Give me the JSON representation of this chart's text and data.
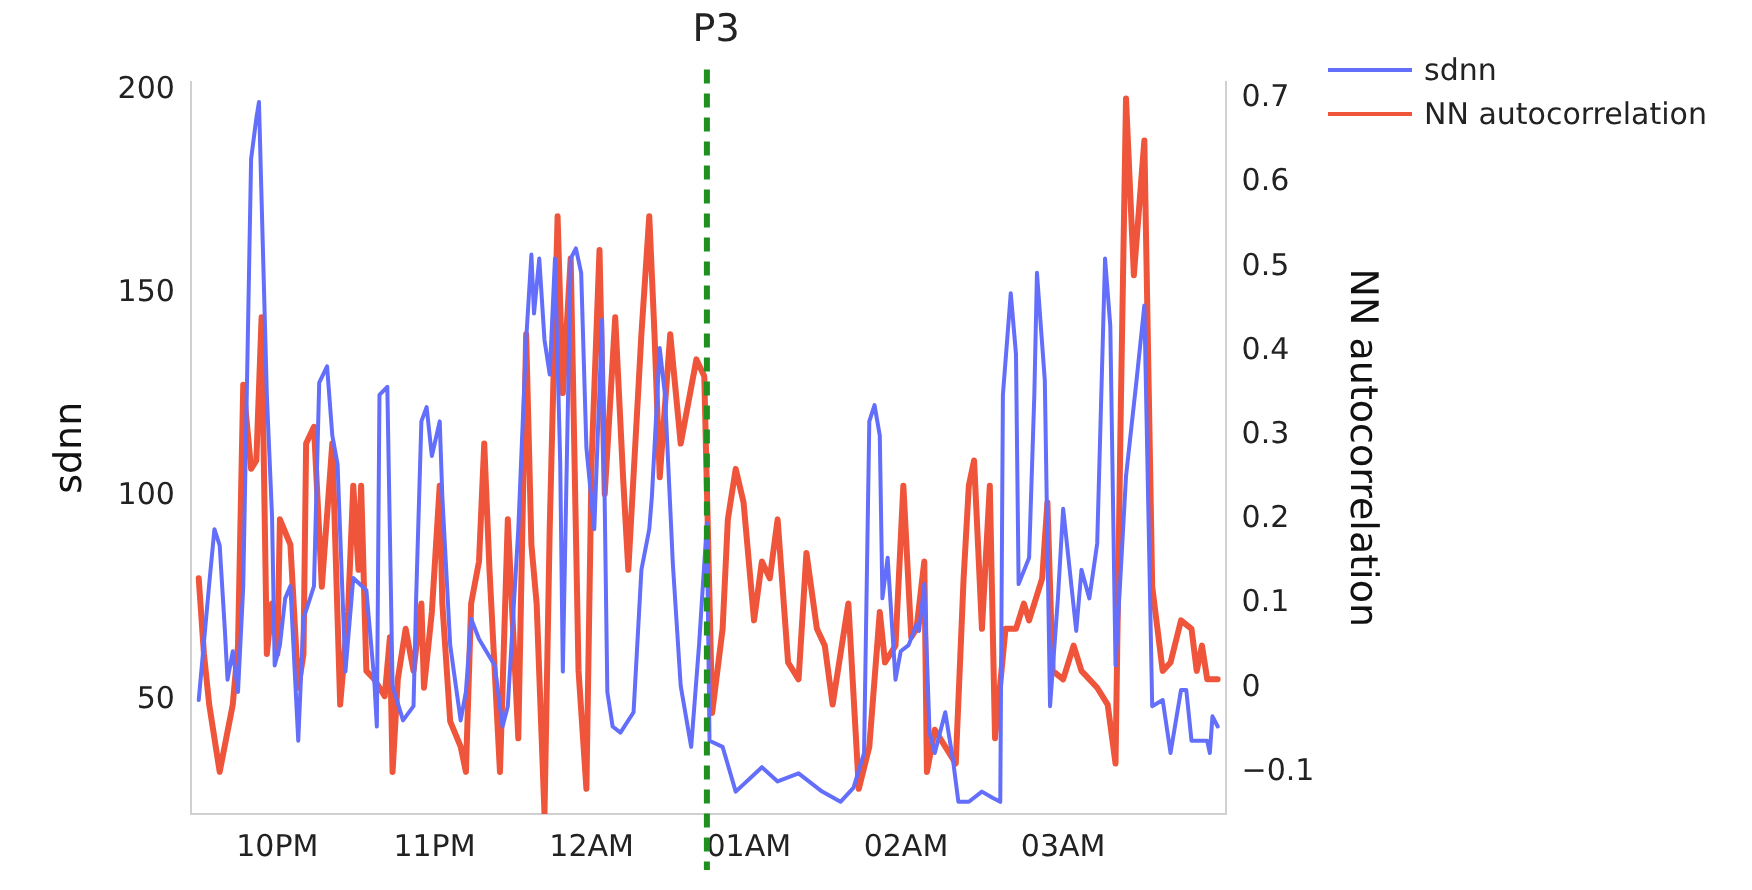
{
  "chart_data": {
    "type": "line",
    "title": "P3",
    "ylabel": "sdnn",
    "y2label": "NN autocorrelation",
    "xlim": [
      "--01-01T21:27",
      "--01-02T04:02"
    ],
    "xticks": [
      {
        "value": "--01-01T22:00",
        "label": "10PM"
      },
      {
        "value": "--01-01T23:00",
        "label": "11PM"
      },
      {
        "value": "--01-02T00:00",
        "label": "12AM"
      },
      {
        "value": "--01-02T01:00",
        "label": "01AM"
      },
      {
        "value": "--01-02T02:00",
        "label": "02AM"
      },
      {
        "value": "--01-02T03:00",
        "label": "03AM"
      }
    ],
    "ylim": [
      22,
      202
    ],
    "yticks": [
      50,
      100,
      150,
      200
    ],
    "y2lim": [
      -0.15,
      0.72
    ],
    "y2ticks": [
      {
        "value": -0.1,
        "label": "−0.1"
      },
      0,
      0.1,
      0.2,
      0.3,
      0.4,
      0.5,
      0.6,
      0.7
    ],
    "grid": false,
    "legend": "top right",
    "marker": "none",
    "line_style": "solid",
    "ref_lines": [
      {
        "axis": "x",
        "value": "--01-02T00:44",
        "color": "#1f8f1f",
        "line_style": "dashed"
      }
    ],
    "series": [
      {
        "name": "sdnn",
        "color": "#636efa",
        "x": [
          "--01-01T21:30",
          "--01-01T21:34",
          "--01-01T21:36",
          "--01-01T21:38",
          "--01-01T21:40",
          "--01-01T21:41",
          "--01-01T21:43",
          "--01-01T21:45",
          "--01-01T21:47",
          "--01-01T21:50",
          "--01-01T21:52",
          "--01-01T21:53",
          "--01-01T21:56",
          "--01-01T21:58",
          "--01-01T21:59",
          "--01-01T22:01",
          "--01-01T22:03",
          "--01-01T22:05",
          "--01-01T22:08",
          "--01-01T22:10",
          "--01-01T22:14",
          "--01-01T22:16",
          "--01-01T22:19",
          "--01-01T22:21",
          "--01-01T22:23",
          "--01-01T22:26",
          "--01-01T22:29",
          "--01-01T22:34",
          "--01-01T22:37",
          "--01-01T22:38",
          "--01-01T22:39",
          "--01-01T22:42",
          "--01-01T22:44",
          "--01-01T22:48",
          "--01-01T22:52",
          "--01-01T22:53",
          "--01-01T22:55",
          "--01-01T22:57",
          "--01-01T22:59",
          "--01-01T23:02",
          "--01-01T23:03",
          "--01-01T23:06",
          "--01-01T23:10",
          "--01-01T23:12",
          "--01-01T23:14",
          "--01-01T23:17",
          "--01-01T23:23",
          "--01-01T23:26",
          "--01-01T23:28",
          "--01-01T23:32",
          "--01-01T23:35",
          "--01-01T23:37",
          "--01-01T23:38",
          "--01-01T23:40",
          "--01-01T23:42",
          "--01-01T23:44",
          "--01-01T23:46",
          "--01-01T23:48",
          "--01-01T23:49",
          "--01-01T23:52",
          "--01-01T23:54",
          "--01-01T23:56",
          "--01-01T23:58",
          "--01-02T00:01",
          "--01-02T00:04",
          "--01-02T00:06",
          "--01-02T00:08",
          "--01-02T00:11",
          "--01-02T00:16",
          "--01-02T00:19",
          "--01-02T00:22",
          "--01-02T00:23",
          "--01-02T00:26",
          "--01-02T00:28",
          "--01-02T00:31",
          "--01-02T00:34",
          "--01-02T00:38",
          "--01-02T00:41",
          "--01-02T00:44",
          "--01-02T00:45",
          "--01-02T00:50",
          "--01-02T00:55",
          "--01-02T01:05",
          "--01-02T01:11",
          "--01-02T01:19",
          "--01-02T01:28",
          "--01-02T01:35",
          "--01-02T01:40",
          "--01-02T01:44",
          "--01-02T01:46",
          "--01-02T01:48",
          "--01-02T01:50",
          "--01-02T01:51",
          "--01-02T01:53",
          "--01-02T01:56",
          "--01-02T01:58",
          "--01-02T02:01",
          "--01-02T02:04",
          "--01-02T02:05",
          "--01-02T02:07",
          "--01-02T02:09",
          "--01-02T02:11",
          "--01-02T02:15",
          "--01-02T02:18",
          "--01-02T02:20",
          "--01-02T02:24",
          "--01-02T02:29",
          "--01-02T02:33",
          "--01-02T02:36",
          "--01-02T02:37",
          "--01-02T02:40",
          "--01-02T02:42",
          "--01-02T02:43",
          "--01-02T02:47",
          "--01-02T02:49",
          "--01-02T02:50",
          "--01-02T02:53",
          "--01-02T02:55",
          "--01-02T02:58",
          "--01-02T03:00",
          "--01-02T03:05",
          "--01-02T03:07",
          "--01-02T03:10",
          "--01-02T03:13",
          "--01-02T03:16",
          "--01-02T03:18",
          "--01-02T03:20",
          "--01-02T03:24",
          "--01-02T03:28",
          "--01-02T03:31",
          "--01-02T03:34",
          "--01-02T03:38",
          "--01-02T03:41",
          "--01-02T03:45",
          "--01-02T03:47",
          "--01-02T03:49",
          "--01-02T03:55",
          "--01-02T03:56",
          "--01-02T03:57",
          "--01-02T03:59"
        ],
        "values": [
          50,
          78.5,
          92,
          88,
          67,
          55,
          62,
          52,
          78,
          183,
          193,
          197,
          125,
          95,
          58.5,
          63.5,
          75,
          78,
          40,
          70,
          78,
          128,
          132,
          115,
          108,
          57,
          80,
          77,
          55,
          43.5,
          125,
          127,
          53.5,
          45,
          48.5,
          75,
          118.5,
          122,
          110,
          118.5,
          100,
          63.5,
          45,
          52,
          70,
          65,
          58.5,
          43.5,
          48.5,
          92,
          138.5,
          159.5,
          145,
          158.5,
          138.5,
          130,
          158.5,
          108.5,
          57,
          158.5,
          161,
          155,
          112,
          92,
          143.5,
          52,
          43.5,
          42,
          47,
          82,
          92,
          100,
          136.5,
          125,
          83.5,
          53.5,
          38.5,
          63.5,
          93.5,
          40,
          38.5,
          27.5,
          33.5,
          30,
          32,
          27.5,
          25,
          28.5,
          37,
          118.5,
          122.5,
          115,
          75,
          85,
          55,
          62,
          63.5,
          68.5,
          67,
          78.5,
          42,
          37,
          47,
          35,
          25,
          25,
          27.5,
          26,
          25,
          125,
          150,
          135,
          78.5,
          85,
          125,
          155,
          128.5,
          48.5,
          75,
          97,
          67,
          82,
          75,
          88.5,
          158.5,
          142,
          58.5,
          105,
          128.5,
          147,
          48.5,
          50,
          37,
          52.5,
          52.5,
          40,
          40,
          37,
          46,
          43.5
        ]
      },
      {
        "name": "NN autocorrelation",
        "color": "#ef553b",
        "axis": "y2",
        "x": [
          "--01-01T21:30",
          "--01-01T21:32",
          "--01-01T21:34",
          "--01-01T21:38",
          "--01-01T21:43",
          "--01-01T21:45",
          "--01-01T21:47",
          "--01-01T21:50",
          "--01-01T21:52",
          "--01-01T21:54",
          "--01-01T21:56",
          "--01-01T21:58",
          "--01-01T22:00",
          "--01-01T22:01",
          "--01-01T22:05",
          "--01-01T22:08",
          "--01-01T22:10",
          "--01-01T22:11",
          "--01-01T22:14",
          "--01-01T22:17",
          "--01-01T22:21",
          "--01-01T22:24",
          "--01-01T22:27",
          "--01-01T22:29",
          "--01-01T22:31",
          "--01-01T22:32",
          "--01-01T22:34",
          "--01-01T22:37",
          "--01-01T22:41",
          "--01-01T22:43",
          "--01-01T22:44",
          "--01-01T22:46",
          "--01-01T22:49",
          "--01-01T22:52",
          "--01-01T22:55",
          "--01-01T22:56",
          "--01-01T22:59",
          "--01-01T23:02",
          "--01-01T23:03",
          "--01-01T23:06",
          "--01-01T23:10",
          "--01-01T23:12",
          "--01-01T23:14",
          "--01-01T23:17",
          "--01-01T23:19",
          "--01-01T23:21",
          "--01-01T23:25",
          "--01-01T23:28",
          "--01-01T23:32",
          "--01-01T23:35",
          "--01-01T23:37",
          "--01-01T23:39",
          "--01-01T23:42",
          "--01-01T23:44",
          "--01-01T23:47",
          "--01-01T23:49",
          "--01-01T23:52",
          "--01-01T23:55",
          "--01-01T23:58",
          "--01-02T00:00",
          "--01-02T00:03",
          "--01-02T00:05",
          "--01-02T00:09",
          "--01-02T00:12",
          "--01-02T00:14",
          "--01-02T00:19",
          "--01-02T00:22",
          "--01-02T00:24",
          "--01-02T00:26",
          "--01-02T00:30",
          "--01-02T00:34",
          "--01-02T00:37",
          "--01-02T00:40",
          "--01-02T00:43",
          "--01-02T00:46",
          "--01-02T00:50",
          "--01-02T00:52",
          "--01-02T00:55",
          "--01-02T00:58",
          "--01-02T01:02",
          "--01-02T01:05",
          "--01-02T01:08",
          "--01-02T01:11",
          "--01-02T01:15",
          "--01-02T01:19",
          "--01-02T01:22",
          "--01-02T01:26",
          "--01-02T01:29",
          "--01-02T01:32",
          "--01-02T01:38",
          "--01-02T01:42",
          "--01-02T01:46",
          "--01-02T01:50",
          "--01-02T01:52",
          "--01-02T01:56",
          "--01-02T01:59",
          "--01-02T02:02",
          "--01-02T02:04",
          "--01-02T02:07",
          "--01-02T02:08",
          "--01-02T02:11",
          "--01-02T02:15",
          "--01-02T02:19",
          "--01-02T02:22",
          "--01-02T02:24",
          "--01-02T02:26",
          "--01-02T02:29",
          "--01-02T02:32",
          "--01-02T02:34",
          "--01-02T02:38",
          "--01-02T02:42",
          "--01-02T02:45",
          "--01-02T02:47",
          "--01-02T02:52",
          "--01-02T02:54",
          "--01-02T02:56",
          "--01-02T03:00",
          "--01-02T03:04",
          "--01-02T03:07",
          "--01-02T03:13",
          "--01-02T03:17",
          "--01-02T03:20",
          "--01-02T03:22",
          "--01-02T03:24",
          "--01-02T03:27",
          "--01-02T03:31",
          "--01-02T03:34",
          "--01-02T03:38",
          "--01-02T03:41",
          "--01-02T03:45",
          "--01-02T03:49",
          "--01-02T03:51",
          "--01-02T03:53",
          "--01-02T03:55",
          "--01-02T03:59"
        ],
        "values": [
          0.13,
          0.04,
          -0.02,
          -0.1,
          -0.02,
          0.05,
          0.36,
          0.26,
          0.27,
          0.44,
          0.04,
          0.1,
          0.04,
          0.2,
          0.17,
          0,
          0.04,
          0.29,
          0.31,
          0.12,
          0.29,
          -0.02,
          0.09,
          0.24,
          0.14,
          0.24,
          0.02,
          0.01,
          -0.01,
          0.06,
          -0.1,
          0.01,
          0.07,
          0.02,
          0.1,
          0,
          0.09,
          0.24,
          0.1,
          -0.04,
          -0.07,
          -0.1,
          0.1,
          0.15,
          0.29,
          0.14,
          -0.1,
          0.2,
          -0.06,
          0.42,
          0.17,
          0.1,
          -0.15,
          0.19,
          0.56,
          0.35,
          0.51,
          0.02,
          -0.12,
          0.27,
          0.52,
          0.23,
          0.44,
          0.25,
          0.14,
          0.42,
          0.56,
          0.42,
          0.25,
          0.42,
          0.29,
          0.34,
          0.39,
          0.37,
          -0.03,
          0.07,
          0.2,
          0.26,
          0.22,
          0.08,
          0.15,
          0.13,
          0.2,
          0.03,
          0.01,
          0.16,
          0.07,
          0.05,
          -0.02,
          0.1,
          -0.12,
          -0.07,
          0.09,
          0.03,
          0.05,
          0.24,
          0.06,
          0.07,
          0.15,
          -0.1,
          -0.05,
          -0.07,
          -0.09,
          0.13,
          0.24,
          0.27,
          0.07,
          0.24,
          -0.06,
          0.07,
          0.07,
          0.1,
          0.08,
          0.13,
          0.22,
          0.02,
          0.01,
          0.05,
          0.02,
          0,
          -0.02,
          -0.09,
          0.33,
          0.7,
          0.49,
          0.65,
          0.12,
          0.02,
          0.03,
          0.08,
          0.07,
          0.02,
          0.05,
          0.01,
          0.01
        ]
      }
    ]
  }
}
